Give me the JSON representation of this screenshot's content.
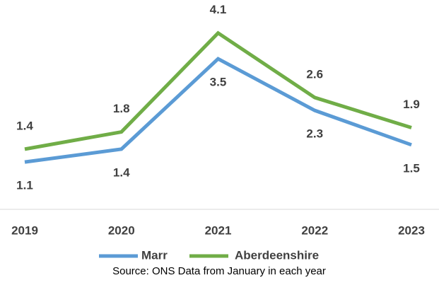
{
  "chart_data": {
    "type": "line",
    "categories": [
      "2019",
      "2020",
      "2021",
      "2022",
      "2023"
    ],
    "series": [
      {
        "name": "Marr",
        "color": "#5b9bd5",
        "values": [
          1.1,
          1.4,
          3.5,
          2.3,
          1.5
        ]
      },
      {
        "name": "Aberdeenshire",
        "color": "#70ad47",
        "values": [
          1.4,
          1.8,
          4.1,
          2.6,
          1.9
        ]
      }
    ],
    "ylim": [
      0,
      4.5
    ],
    "source": "Source: ONS Data from January in each year"
  }
}
